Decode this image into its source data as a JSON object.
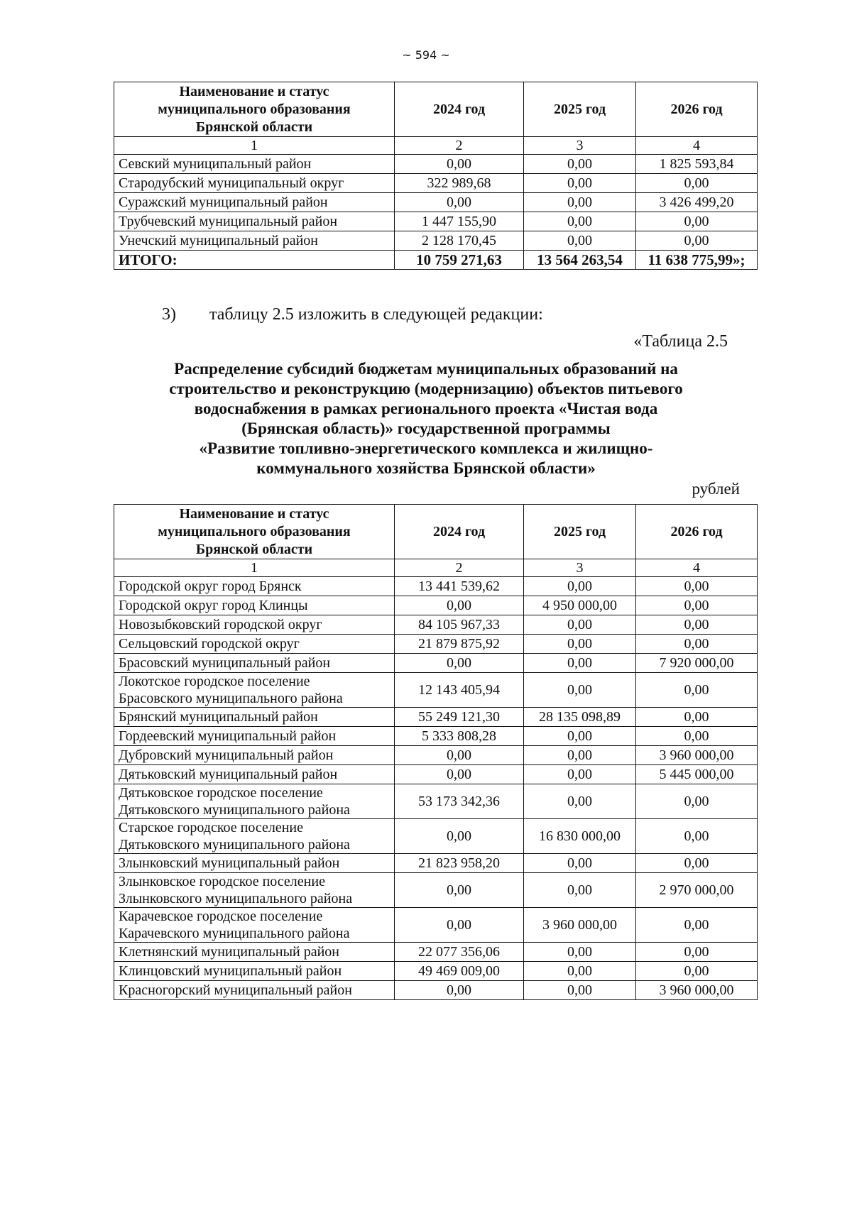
{
  "page_number": "~ 594 ~",
  "table1": {
    "header": [
      "Наименование и статус муниципального образования Брянской области",
      "2024 год",
      "2025 год",
      "2026 год"
    ],
    "numbering": [
      "1",
      "2",
      "3",
      "4"
    ],
    "rows": [
      [
        "Севский муниципальный район",
        "0,00",
        "0,00",
        "1 825 593,84"
      ],
      [
        "Стародубский муниципальный округ",
        "322 989,68",
        "0,00",
        "0,00"
      ],
      [
        "Суражский муниципальный район",
        "0,00",
        "0,00",
        "3 426 499,20"
      ],
      [
        "Трубчевский муниципальный район",
        "1 447 155,90",
        "0,00",
        "0,00"
      ],
      [
        "Унечский муниципальный район",
        "2 128 170,45",
        "0,00",
        "0,00"
      ]
    ],
    "total": [
      "ИТОГО:",
      "10 759 271,63",
      "13 564 263,54",
      "11 638 775,99»;"
    ]
  },
  "item": {
    "number": "3)",
    "text": "таблицу 2.5 изложить в следующей редакции:"
  },
  "table_label": "«Таблица 2.5",
  "title_lines": [
    "Распределение субсидий бюджетам муниципальных образований на",
    "строительство и реконструкцию (модернизацию) объектов питьевого",
    "водоснабжения в рамках регионального проекта «Чистая вода",
    "(Брянская область)» государственной программы",
    "«Развитие топливно-энергетического комплекса и жилищно-",
    "коммунального хозяйства Брянской области»"
  ],
  "unit": "рублей",
  "table2": {
    "header": [
      "Наименование и статус муниципального образования Брянской области",
      "2024 год",
      "2025 год",
      "2026 год"
    ],
    "numbering": [
      "1",
      "2",
      "3",
      "4"
    ],
    "rows": [
      [
        "Городской округ город Брянск",
        "13 441 539,62",
        "0,00",
        "0,00"
      ],
      [
        "Городской округ город Клинцы",
        "0,00",
        "4 950 000,00",
        "0,00"
      ],
      [
        "Новозыбковский городской округ",
        "84 105 967,33",
        "0,00",
        "0,00"
      ],
      [
        "Сельцовский городской округ",
        "21 879 875,92",
        "0,00",
        "0,00"
      ],
      [
        "Брасовский муниципальный район",
        "0,00",
        "0,00",
        "7 920 000,00"
      ],
      [
        "Локотское городское поселение Брасовского муниципального района",
        "12 143 405,94",
        "0,00",
        "0,00"
      ],
      [
        "Брянский муниципальный район",
        "55 249 121,30",
        "28 135 098,89",
        "0,00"
      ],
      [
        "Гордеевский муниципальный район",
        "5 333 808,28",
        "0,00",
        "0,00"
      ],
      [
        "Дубровский муниципальный район",
        "0,00",
        "0,00",
        "3 960 000,00"
      ],
      [
        "Дятьковский муниципальный район",
        "0,00",
        "0,00",
        "5 445 000,00"
      ],
      [
        "Дятьковское городское поселение Дятьковского муниципального района",
        "53 173 342,36",
        "0,00",
        "0,00"
      ],
      [
        "Старское городское поселение Дятьковского муниципального района",
        "0,00",
        "16 830 000,00",
        "0,00"
      ],
      [
        "Злынковский муниципальный район",
        "21 823 958,20",
        "0,00",
        "0,00"
      ],
      [
        "Злынковское городское поселение Злынковского муниципального района",
        "0,00",
        "0,00",
        "2 970 000,00"
      ],
      [
        "Карачевское городское поселение Карачевского муниципального района",
        "0,00",
        "3 960 000,00",
        "0,00"
      ],
      [
        "Клетнянский муниципальный район",
        "22 077 356,06",
        "0,00",
        "0,00"
      ],
      [
        "Клинцовский муниципальный район",
        "49 469 009,00",
        "0,00",
        "0,00"
      ],
      [
        "Красногорский муниципальный район",
        "0,00",
        "0,00",
        "3 960 000,00"
      ]
    ]
  }
}
